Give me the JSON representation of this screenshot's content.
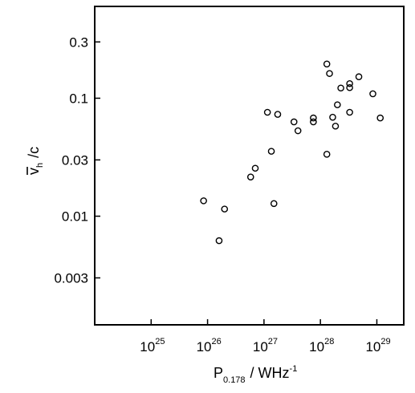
{
  "chart_data": {
    "type": "scatter",
    "title": "",
    "x_scale": "log",
    "y_scale": "log",
    "xlim": [
      1e+24,
      3e+29
    ],
    "ylim": [
      0.0012,
      0.6
    ],
    "grid": false,
    "legend": "none",
    "marker": "open-circle",
    "xlabel": {
      "main": "P",
      "sub": "0.178",
      "unit": "/ WHz",
      "unit_sup": "-1"
    },
    "ylabel": {
      "main": "v",
      "sub": "h",
      "unit": "/c"
    },
    "x_ticks": [
      {
        "value": 1e+25,
        "base": "10",
        "exp": "25"
      },
      {
        "value": 1e+26,
        "base": "10",
        "exp": "26"
      },
      {
        "value": 1e+27,
        "base": "10",
        "exp": "27"
      },
      {
        "value": 1e+28,
        "base": "10",
        "exp": "28"
      },
      {
        "value": 1e+29,
        "base": "10",
        "exp": "29"
      }
    ],
    "y_ticks": [
      {
        "value": 0.003,
        "label": "0.003"
      },
      {
        "value": 0.01,
        "label": "0.01"
      },
      {
        "value": 0.03,
        "label": "0.03"
      },
      {
        "value": 0.1,
        "label": "0.1"
      },
      {
        "value": 0.3,
        "label": "0.3"
      }
    ],
    "points": [
      {
        "x": 8.5e+25,
        "y": 0.0135
      },
      {
        "x": 1.6e+26,
        "y": 0.0062
      },
      {
        "x": 2e+26,
        "y": 0.0115
      },
      {
        "x": 5.8e+26,
        "y": 0.0215
      },
      {
        "x": 7e+26,
        "y": 0.0255
      },
      {
        "x": 1.15e+27,
        "y": 0.076
      },
      {
        "x": 1.35e+27,
        "y": 0.0355
      },
      {
        "x": 1.5e+27,
        "y": 0.0128
      },
      {
        "x": 1.75e+27,
        "y": 0.073
      },
      {
        "x": 3.4e+27,
        "y": 0.063
      },
      {
        "x": 4e+27,
        "y": 0.053
      },
      {
        "x": 7.5e+27,
        "y": 0.063
      },
      {
        "x": 7.5e+27,
        "y": 0.068
      },
      {
        "x": 1.3e+28,
        "y": 0.195
      },
      {
        "x": 1.3e+28,
        "y": 0.0335
      },
      {
        "x": 1.45e+28,
        "y": 0.162
      },
      {
        "x": 1.65e+28,
        "y": 0.069
      },
      {
        "x": 1.85e+28,
        "y": 0.058
      },
      {
        "x": 2e+28,
        "y": 0.088
      },
      {
        "x": 2.3e+28,
        "y": 0.122
      },
      {
        "x": 3.3e+28,
        "y": 0.123
      },
      {
        "x": 3.3e+28,
        "y": 0.133
      },
      {
        "x": 3.3e+28,
        "y": 0.076
      },
      {
        "x": 4.8e+28,
        "y": 0.152
      },
      {
        "x": 8.5e+28,
        "y": 0.109
      },
      {
        "x": 1.15e+29,
        "y": 0.068
      }
    ]
  }
}
